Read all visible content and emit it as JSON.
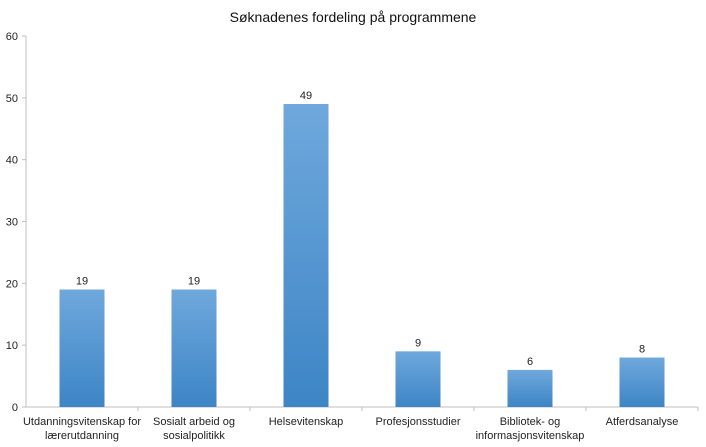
{
  "chart_data": {
    "type": "bar",
    "title": "Søknadenes fordeling på programmene",
    "categories": [
      [
        "Utdanningsvitenskap for",
        "lærerutdanning"
      ],
      [
        "Sosialt arbeid og",
        "sosialpolitikk"
      ],
      [
        "Helsevitenskap"
      ],
      [
        "Profesjonsstudier"
      ],
      [
        "Bibliotek- og",
        "informasjonsvitenskap"
      ],
      [
        "Atferdsanalyse"
      ]
    ],
    "values": [
      19,
      19,
      49,
      9,
      6,
      8
    ],
    "data_labels": [
      "19",
      "19",
      "49",
      "9",
      "6",
      "8"
    ],
    "ylim": [
      0,
      60
    ],
    "yticks": [
      "0",
      "10",
      "20",
      "30",
      "40",
      "50",
      "60"
    ],
    "xlabel": "",
    "ylabel": "",
    "grid": false,
    "legend": "none",
    "colors": {
      "bar_top": "#6fa8dc",
      "bar_bottom": "#3d85c6",
      "axis": "#bfbfbf"
    }
  }
}
